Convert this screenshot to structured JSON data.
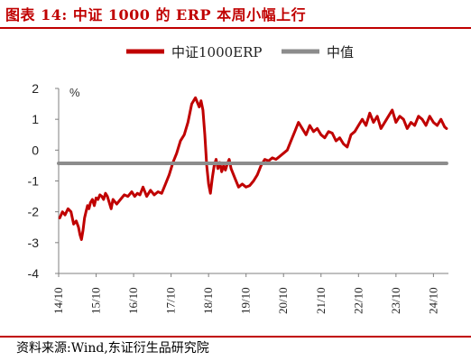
{
  "title": "图表 14:  中证 1000 的 ERP 本周小幅上行",
  "source": "资料来源:Wind,东证衍生品研究院",
  "colors": {
    "title": "#c00000",
    "erp": "#c00000",
    "median": "#8c8c8c"
  },
  "chart_data": {
    "type": "line",
    "ylabel": "%",
    "ylim": [
      -4,
      2
    ],
    "yticks": [
      "2",
      "1",
      "0",
      "-1",
      "-2",
      "-3",
      "-4"
    ],
    "xlim": [
      2014.75,
      2025.15
    ],
    "xticks": [
      "14/10",
      "15/10",
      "16/10",
      "17/10",
      "18/10",
      "19/10",
      "20/10",
      "21/10",
      "22/10",
      "23/10",
      "24/10"
    ],
    "legend": {
      "position": "top",
      "entries": [
        "中证1000ERP",
        "中值"
      ]
    },
    "series": [
      {
        "name": "中证1000ERP",
        "x": [
          2014.78,
          2014.85,
          2014.92,
          2015.0,
          2015.08,
          2015.15,
          2015.22,
          2015.28,
          2015.32,
          2015.36,
          2015.4,
          2015.44,
          2015.48,
          2015.52,
          2015.56,
          2015.6,
          2015.65,
          2015.7,
          2015.75,
          2015.8,
          2015.85,
          2015.9,
          2015.95,
          2016.0,
          2016.05,
          2016.1,
          2016.15,
          2016.2,
          2016.3,
          2016.4,
          2016.5,
          2016.6,
          2016.7,
          2016.78,
          2016.85,
          2016.92,
          2017.0,
          2017.1,
          2017.2,
          2017.3,
          2017.4,
          2017.5,
          2017.6,
          2017.7,
          2017.8,
          2017.9,
          2018.0,
          2018.1,
          2018.2,
          2018.3,
          2018.4,
          2018.5,
          2018.55,
          2018.6,
          2018.65,
          2018.7,
          2018.75,
          2018.8,
          2018.85,
          2018.9,
          2018.95,
          2019.0,
          2019.05,
          2019.1,
          2019.15,
          2019.2,
          2019.25,
          2019.3,
          2019.35,
          2019.45,
          2019.55,
          2019.65,
          2019.75,
          2019.85,
          2019.95,
          2020.05,
          2020.15,
          2020.25,
          2020.35,
          2020.45,
          2020.55,
          2020.65,
          2020.75,
          2020.85,
          2020.95,
          2021.05,
          2021.15,
          2021.25,
          2021.35,
          2021.45,
          2021.55,
          2021.65,
          2021.75,
          2021.85,
          2021.95,
          2022.05,
          2022.15,
          2022.25,
          2022.35,
          2022.45,
          2022.55,
          2022.65,
          2022.75,
          2022.85,
          2022.95,
          2023.05,
          2023.15,
          2023.25,
          2023.35,
          2023.45,
          2023.55,
          2023.65,
          2023.75,
          2023.85,
          2023.95,
          2024.05,
          2024.15,
          2024.25,
          2024.35,
          2024.45,
          2024.55,
          2024.65,
          2024.75,
          2024.85,
          2024.95,
          2025.05,
          2025.1
        ],
        "y": [
          -2.2,
          -2.0,
          -2.1,
          -1.9,
          -2.0,
          -2.4,
          -2.3,
          -2.5,
          -2.75,
          -2.9,
          -2.6,
          -2.2,
          -2.0,
          -1.8,
          -1.9,
          -1.7,
          -1.6,
          -1.8,
          -1.55,
          -1.6,
          -1.45,
          -1.5,
          -1.6,
          -1.4,
          -1.5,
          -1.7,
          -1.9,
          -1.6,
          -1.75,
          -1.6,
          -1.45,
          -1.5,
          -1.35,
          -1.5,
          -1.4,
          -1.45,
          -1.2,
          -1.5,
          -1.3,
          -1.45,
          -1.35,
          -1.4,
          -1.1,
          -0.8,
          -0.4,
          -0.1,
          0.3,
          0.5,
          0.9,
          1.5,
          1.7,
          1.4,
          1.6,
          1.3,
          0.5,
          -0.5,
          -1.1,
          -1.4,
          -0.9,
          -0.5,
          -0.3,
          -0.6,
          -0.4,
          -0.7,
          -0.5,
          -0.65,
          -0.45,
          -0.3,
          -0.6,
          -0.9,
          -1.2,
          -1.1,
          -1.2,
          -1.15,
          -1.0,
          -0.8,
          -0.5,
          -0.3,
          -0.35,
          -0.25,
          -0.3,
          -0.2,
          -0.1,
          0.0,
          0.3,
          0.6,
          0.9,
          0.7,
          0.5,
          0.8,
          0.6,
          0.7,
          0.5,
          0.4,
          0.6,
          0.55,
          0.3,
          0.4,
          0.2,
          0.1,
          0.5,
          0.6,
          0.8,
          1.0,
          0.8,
          1.2,
          0.9,
          1.1,
          0.7,
          0.9,
          1.1,
          1.3,
          0.9,
          1.1,
          1.0,
          0.7,
          0.9,
          0.8,
          1.1,
          1.0,
          0.8,
          1.1,
          0.9,
          0.8,
          1.0,
          0.75,
          0.7
        ]
      },
      {
        "name": "中值",
        "x": [
          2014.75,
          2025.1
        ],
        "y": [
          -0.43,
          -0.43
        ]
      }
    ]
  }
}
